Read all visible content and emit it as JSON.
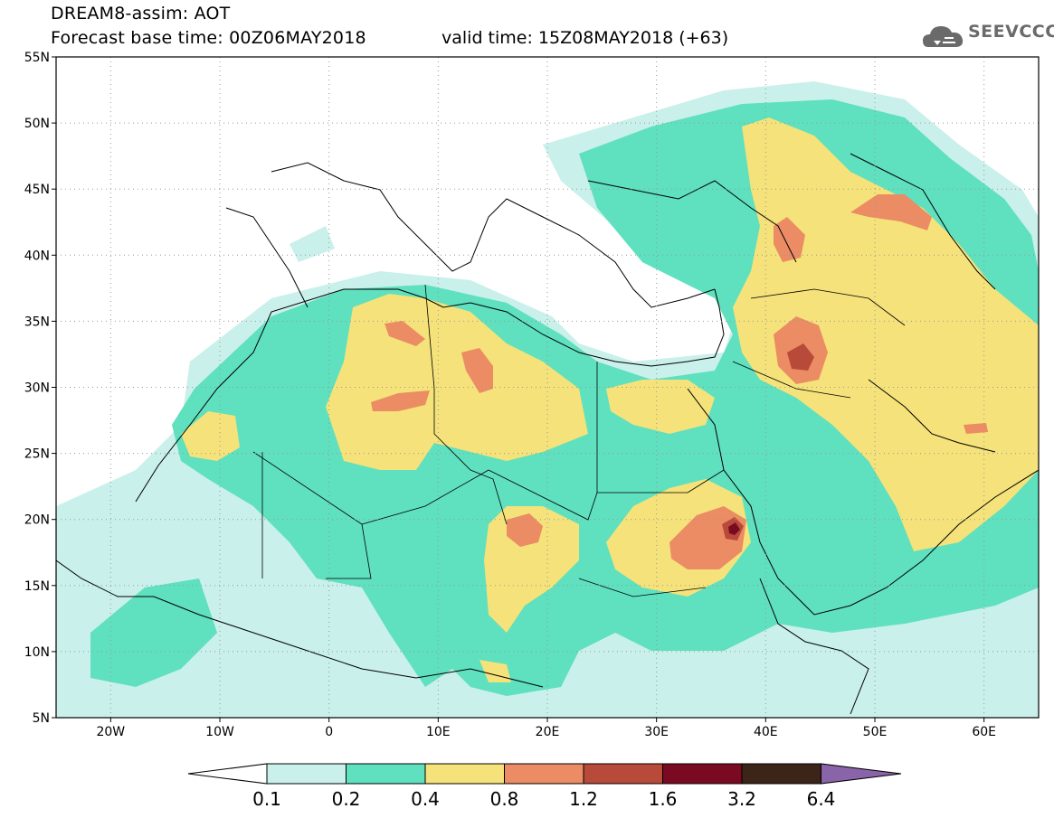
{
  "header": {
    "title": "DREAM8-assim: AOT",
    "base_time": "Forecast base time: 00Z06MAY2018",
    "valid_time": "valid time: 15Z08MAY2018 (+63)",
    "logo_text": "SEEVCCC",
    "logo_icon": "cloud-icon"
  },
  "map": {
    "projection": "lat-lon",
    "lon_range": [
      -25,
      65
    ],
    "lat_range": [
      5,
      55
    ],
    "grid": "dotted",
    "lat_ticks": [
      {
        "value": 55,
        "label": "55N"
      },
      {
        "value": 50,
        "label": "50N"
      },
      {
        "value": 45,
        "label": "45N"
      },
      {
        "value": 40,
        "label": "40N"
      },
      {
        "value": 35,
        "label": "35N"
      },
      {
        "value": 30,
        "label": "30N"
      },
      {
        "value": 25,
        "label": "25N"
      },
      {
        "value": 20,
        "label": "20N"
      },
      {
        "value": 15,
        "label": "15N"
      },
      {
        "value": 10,
        "label": "10N"
      },
      {
        "value": 5,
        "label": "5N"
      }
    ],
    "lon_ticks": [
      {
        "value": -20,
        "label": "20W"
      },
      {
        "value": -10,
        "label": "10W"
      },
      {
        "value": 0,
        "label": "0"
      },
      {
        "value": 10,
        "label": "10E"
      },
      {
        "value": 20,
        "label": "20E"
      },
      {
        "value": 30,
        "label": "30E"
      },
      {
        "value": 40,
        "label": "40E"
      },
      {
        "value": 50,
        "label": "50E"
      },
      {
        "value": 60,
        "label": "60E"
      }
    ]
  },
  "colorbar": {
    "levels": [
      "0.1",
      "0.2",
      "0.4",
      "0.8",
      "1.2",
      "1.6",
      "3.2",
      "6.4"
    ],
    "colors": [
      "#ffffff",
      "#c9f0ea",
      "#5fe0be",
      "#f5e27a",
      "#eb8c64",
      "#b84a3a",
      "#7a0a22",
      "#3c2418",
      "#8a64a8"
    ]
  }
}
